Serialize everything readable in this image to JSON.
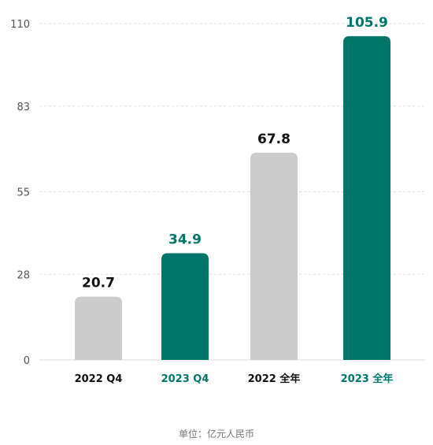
{
  "chart_data": {
    "type": "bar",
    "categories": [
      "2022 Q4",
      "2023 Q4",
      "2022 全年",
      "2023 全年"
    ],
    "values": [
      20.7,
      34.9,
      67.8,
      105.9
    ],
    "value_labels": [
      "20.7",
      "34.9",
      "67.8",
      "105.9"
    ],
    "highlighted": [
      false,
      true,
      false,
      true
    ],
    "yticks": [
      0,
      28,
      55,
      83,
      110
    ],
    "ylim": [
      0,
      110
    ],
    "grid": true,
    "unit_note": "单位：亿元人民币",
    "colors": {
      "grey_bar": "#cccccc",
      "accent_bar": "#00756a",
      "grey_text": "#111111",
      "accent_text": "#00756a",
      "grid": "#dddddd"
    }
  }
}
